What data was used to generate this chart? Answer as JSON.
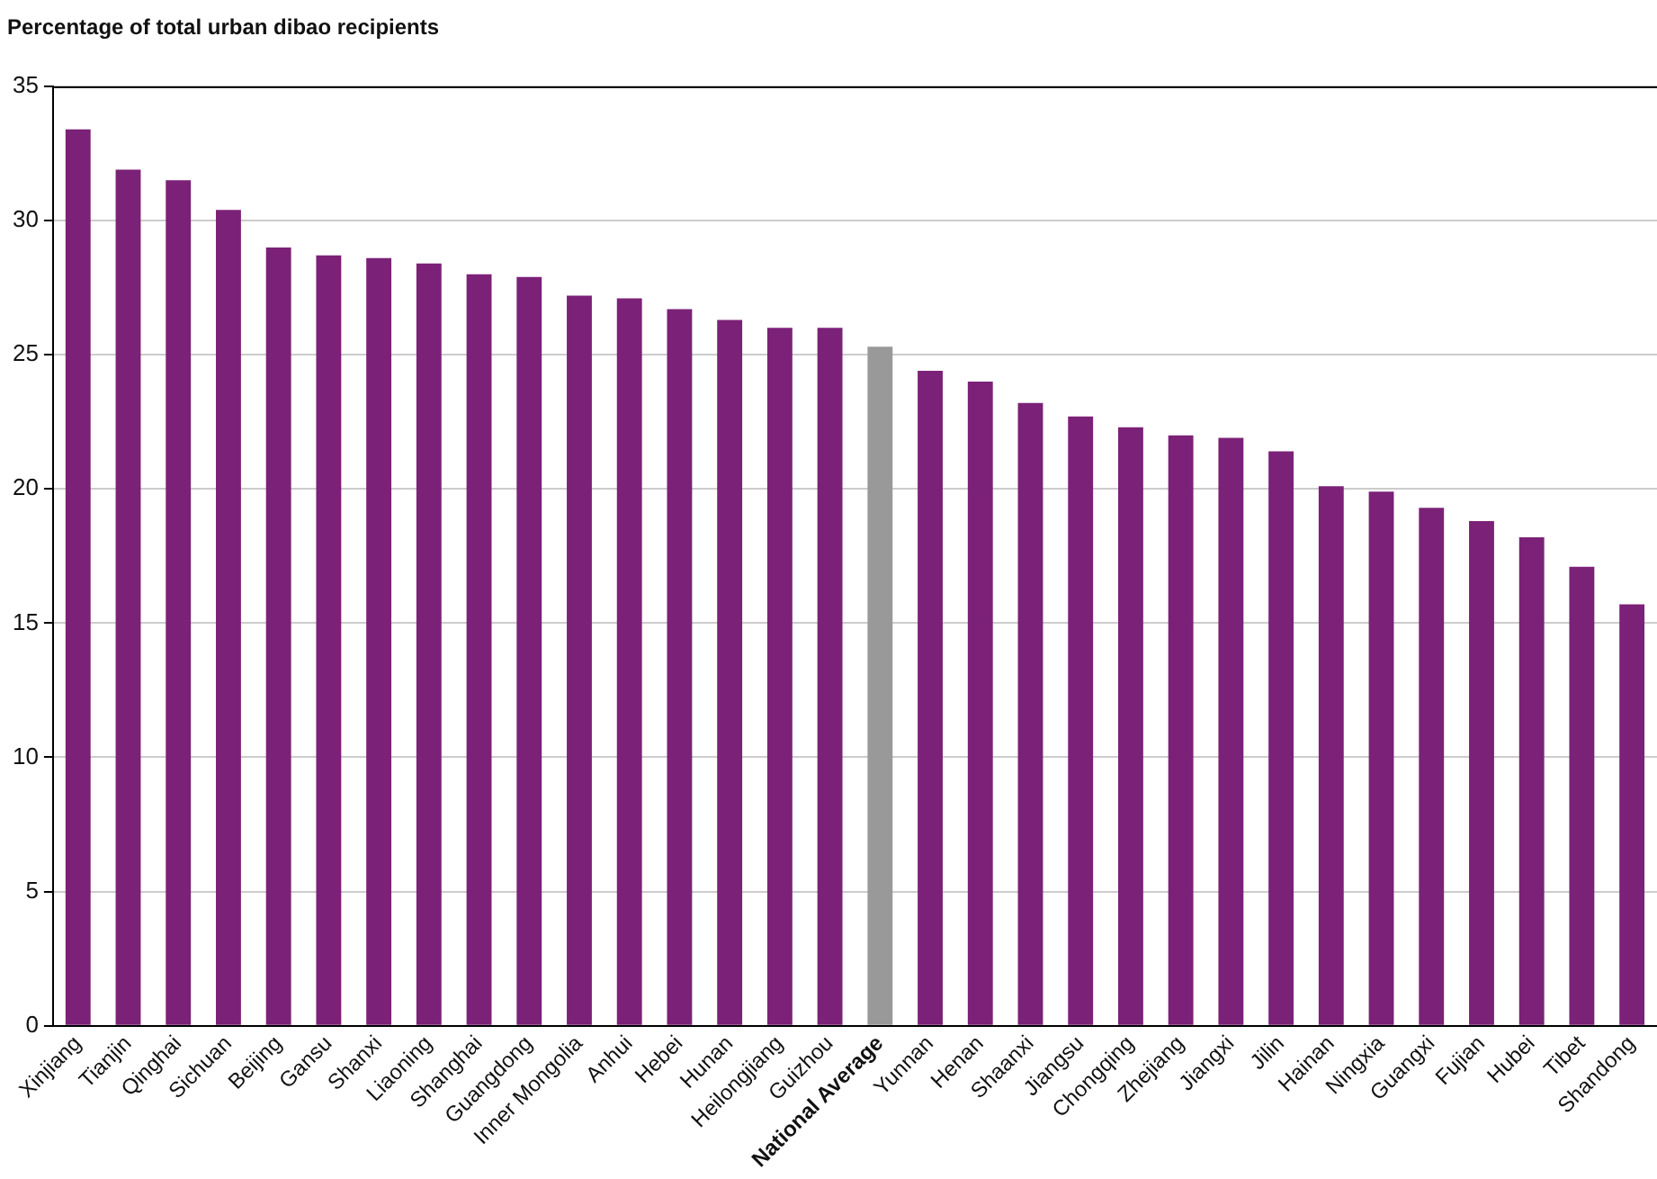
{
  "chart_data": {
    "type": "bar",
    "title": "Percentage of total urban dibao recipients",
    "categories": [
      "Xinjiang",
      "Tianjin",
      "Qinghai",
      "Sichuan",
      "Beijing",
      "Gansu",
      "Shanxi",
      "Liaoning",
      "Shanghai",
      "Guangdong",
      "Inner Mongolia",
      "Anhui",
      "Hebei",
      "Hunan",
      "Heilongjiang",
      "Guizhou",
      "National Average",
      "Yunnan",
      "Henan",
      "Shaanxi",
      "Jiangsu",
      "Chongqing",
      "Zhejiang",
      "Jiangxi",
      "Jilin",
      "Hainan",
      "Ningxia",
      "Guangxi",
      "Fujian",
      "Hubei",
      "Tibet",
      "Shandong"
    ],
    "values": [
      33.4,
      31.9,
      31.5,
      30.4,
      29.0,
      28.7,
      28.6,
      28.4,
      28.0,
      27.9,
      27.2,
      27.1,
      26.7,
      26.3,
      26.0,
      26.0,
      25.3,
      24.4,
      24.0,
      23.2,
      22.7,
      22.3,
      22.0,
      21.9,
      21.4,
      20.1,
      19.9,
      19.3,
      18.8,
      18.2,
      17.1,
      15.7
    ],
    "colors": [
      "#7b2177",
      "#7b2177",
      "#7b2177",
      "#7b2177",
      "#7b2177",
      "#7b2177",
      "#7b2177",
      "#7b2177",
      "#7b2177",
      "#7b2177",
      "#7b2177",
      "#7b2177",
      "#7b2177",
      "#7b2177",
      "#7b2177",
      "#7b2177",
      "#999999",
      "#7b2177",
      "#7b2177",
      "#7b2177",
      "#7b2177",
      "#7b2177",
      "#7b2177",
      "#7b2177",
      "#7b2177",
      "#7b2177",
      "#7b2177",
      "#7b2177",
      "#7b2177",
      "#7b2177",
      "#7b2177",
      "#7b2177"
    ],
    "ylim": [
      0,
      35
    ],
    "yticks": [
      0,
      5,
      10,
      15,
      20,
      25,
      30,
      35
    ],
    "grid": "y",
    "legend": false
  }
}
